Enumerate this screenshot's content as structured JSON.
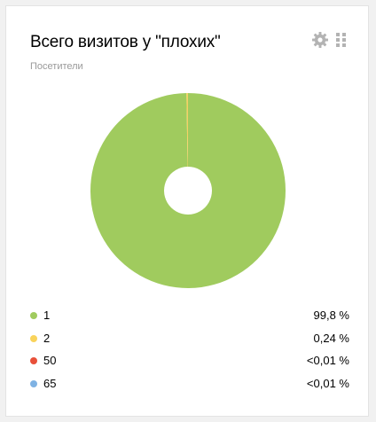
{
  "widget": {
    "title": "Всего визитов у \"плохих\"",
    "subtitle": "Посетители",
    "settings_icon": "gear-icon",
    "drag_icon": "drag-handle-icon"
  },
  "chart_data": {
    "type": "pie",
    "donut": true,
    "labels": [
      "1",
      "2",
      "50",
      "65"
    ],
    "values": [
      99.76,
      0.24,
      0.005,
      0.005
    ],
    "value_labels": [
      "99,8 %",
      "0,24 %",
      "<0,01 %",
      "<0,01 %"
    ],
    "colors": [
      "#a0cb5e",
      "#f9d35b",
      "#e8503a",
      "#7fb2e3"
    ],
    "legend_position": "bottom"
  },
  "legend": [
    {
      "label": "1",
      "value": "99,8 %",
      "color": "#a0cb5e"
    },
    {
      "label": "2",
      "value": "0,24 %",
      "color": "#f9d35b"
    },
    {
      "label": "50",
      "value": "<0,01 %",
      "color": "#e8503a"
    },
    {
      "label": "65",
      "value": "<0,01 %",
      "color": "#7fb2e3"
    }
  ]
}
